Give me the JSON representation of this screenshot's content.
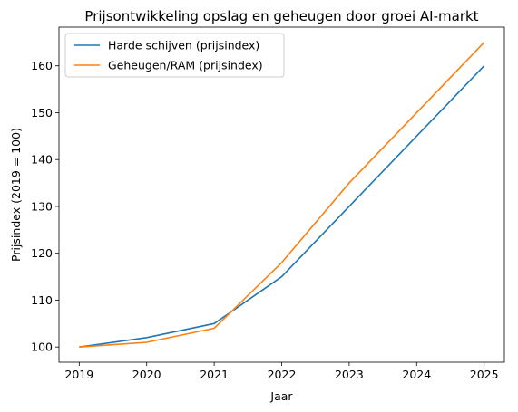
{
  "chart_data": {
    "type": "line",
    "title": "Prijsontwikkeling opslag en geheugen door groei AI-markt",
    "xlabel": "Jaar",
    "ylabel": "Prijsindex (2019 = 100)",
    "x": [
      2019,
      2020,
      2021,
      2022,
      2023,
      2024,
      2025
    ],
    "xticks": [
      "2019",
      "2020",
      "2021",
      "2022",
      "2023",
      "2024",
      "2025"
    ],
    "yticks": [
      "100",
      "110",
      "120",
      "130",
      "140",
      "150",
      "160"
    ],
    "xlim": [
      2018.7,
      2025.3
    ],
    "ylim": [
      96.75,
      168.25
    ],
    "grid": false,
    "legend_position": "top-left",
    "series": [
      {
        "name": "Harde schijven (prijsindex)",
        "color": "#1f77b4",
        "values": [
          100,
          102,
          105,
          115,
          130,
          145,
          160
        ]
      },
      {
        "name": "Geheugen/RAM (prijsindex)",
        "color": "#ff7f0e",
        "values": [
          100,
          101,
          104,
          118,
          135,
          150,
          165
        ]
      }
    ]
  }
}
